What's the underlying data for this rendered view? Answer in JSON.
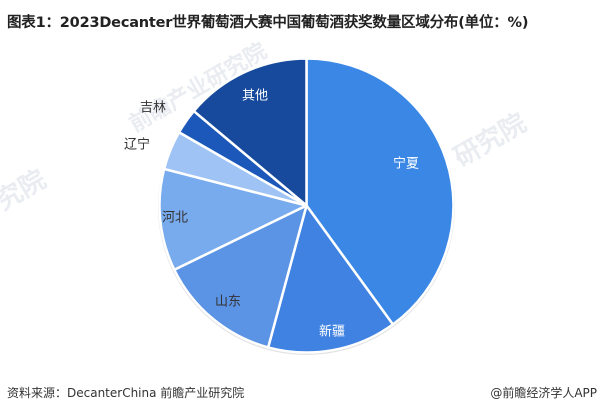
{
  "title": "图表1：2023Decanter世界葡萄酒大赛中国葡萄酒获奖数量区域分布(单位：%)",
  "footer": {
    "source": "资料来源：DecanterChina 前瞻产业研究院",
    "brand": "@前瞻经济学人APP"
  },
  "watermarks": [
    "前瞻产业研究院",
    "究院",
    "研究院"
  ],
  "chart_data": {
    "type": "pie",
    "title": "2023Decanter世界葡萄酒大赛中国葡萄酒获奖数量区域分布(单位：%)",
    "unit": "%",
    "start_angle": "12 o'clock, clockwise",
    "categories": [
      "宁夏",
      "新疆",
      "山东",
      "河北",
      "辽宁",
      "吉林",
      "其他"
    ],
    "values": [
      40.0,
      14.2,
      13.6,
      11.2,
      4.3,
      2.8,
      13.9
    ],
    "colors": [
      "#3a87e6",
      "#3f82e2",
      "#5b93e5",
      "#78aaee",
      "#9fc3f4",
      "#1b58b9",
      "#174a9c"
    ],
    "label_colors": [
      "#ffffff",
      "#ffffff",
      "#333333",
      "#333333",
      "#333333",
      "#333333",
      "#ffffff"
    ],
    "legend": "none (labels on slices)",
    "data_labels_shown": false
  }
}
